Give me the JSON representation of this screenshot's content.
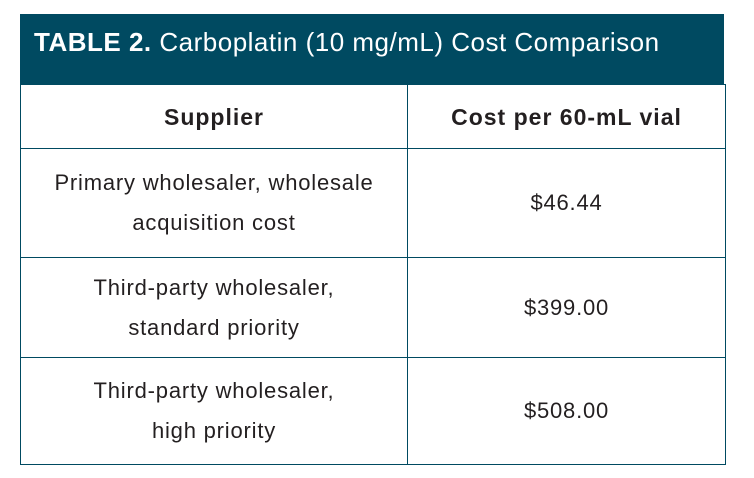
{
  "header": {
    "label": "TABLE 2.",
    "title": "Carboplatin (10 mg/mL) Cost Comparison"
  },
  "table": {
    "columns": [
      "Supplier",
      "Cost per 60-mL vial"
    ],
    "rows": [
      [
        [
          "Primary wholesaler, wholesale",
          "acquisition cost"
        ],
        "$46.44"
      ],
      [
        [
          "Third-party wholesaler,",
          "standard priority"
        ],
        "$399.00"
      ],
      [
        [
          "Third-party wholesaler,",
          "high priority"
        ],
        "$508.00"
      ]
    ]
  }
}
